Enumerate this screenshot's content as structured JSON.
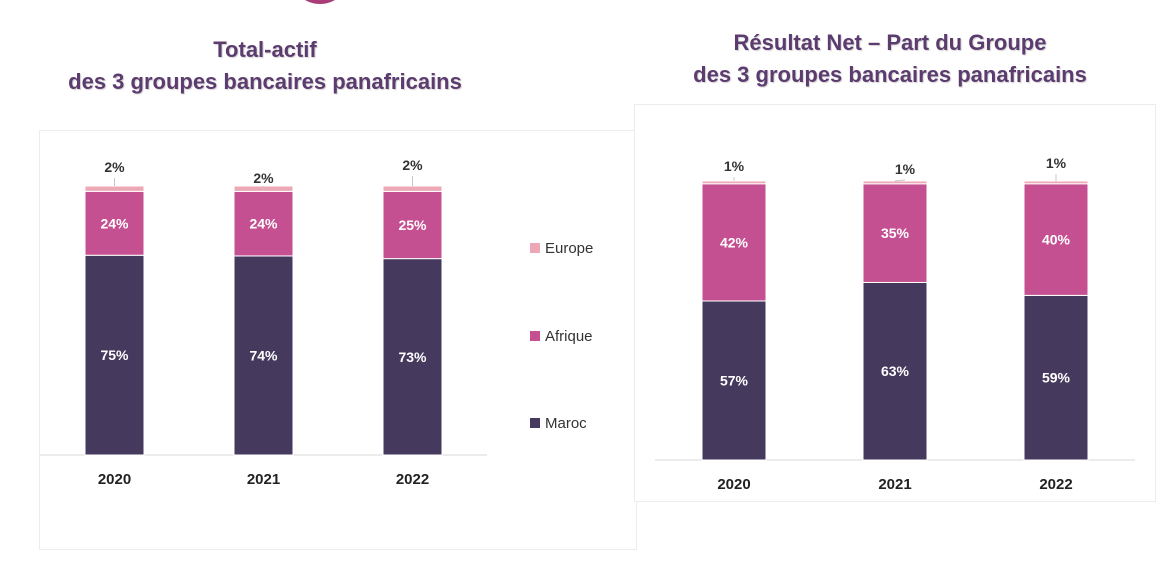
{
  "colors": {
    "maroc": "#46395e",
    "afrique": "#c55091",
    "europe": "#eda8b6",
    "title": "#5c3b6f"
  },
  "legend": [
    {
      "label": "Europe",
      "color": "#eda8b6"
    },
    {
      "label": "Afrique",
      "color": "#c55091"
    },
    {
      "label": "Maroc",
      "color": "#46395e"
    }
  ],
  "chart_data": [
    {
      "type": "bar",
      "title": "Total-actif",
      "subtitle": "des 3 groupes bancaires panafricains",
      "stacked": true,
      "categories": [
        "2020",
        "2021",
        "2022"
      ],
      "series": [
        {
          "name": "Maroc",
          "values": [
            75,
            74,
            73
          ],
          "labels": [
            "75%",
            "74%",
            "73%"
          ]
        },
        {
          "name": "Afrique",
          "values": [
            24,
            24,
            25
          ],
          "labels": [
            "24%",
            "24%",
            "25%"
          ]
        },
        {
          "name": "Europe",
          "values": [
            2,
            2,
            2
          ],
          "labels": [
            "2%",
            "2%",
            "2%"
          ]
        }
      ],
      "ylim": [
        0,
        100
      ],
      "legend": "right"
    },
    {
      "type": "bar",
      "title": "Résultat Net – Part du Groupe",
      "subtitle": "des 3 groupes bancaires panafricains",
      "stacked": true,
      "categories": [
        "2020",
        "2021",
        "2022"
      ],
      "series": [
        {
          "name": "Maroc",
          "values": [
            57,
            63,
            59
          ],
          "labels": [
            "57%",
            "63%",
            "59%"
          ]
        },
        {
          "name": "Afrique",
          "values": [
            42,
            35,
            40
          ],
          "labels": [
            "42%",
            "35%",
            "40%"
          ]
        },
        {
          "name": "Europe",
          "values": [
            1,
            1,
            1
          ],
          "labels": [
            "1%",
            "1%",
            "1%"
          ]
        }
      ],
      "ylim": [
        0,
        100
      ]
    }
  ]
}
